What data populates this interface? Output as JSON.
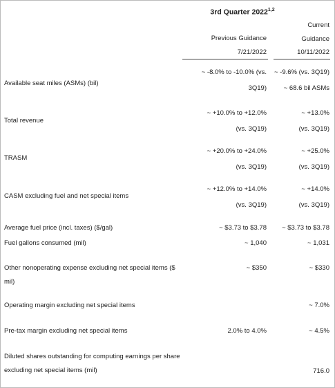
{
  "header": {
    "title": "3rd Quarter 2022",
    "title_superscript": "1,2",
    "previous": {
      "lines": [
        "Previous Guidance",
        "7/21/2022"
      ]
    },
    "current": {
      "lines": [
        "Current",
        "Guidance",
        "10/11/2022"
      ]
    }
  },
  "rows": [
    {
      "label": [
        "Available seat miles (ASMs) (bil)"
      ],
      "previous": [
        "~ -8.0% to -10.0% (vs.",
        "3Q19)"
      ],
      "current": [
        "~ -9.6% (vs. 3Q19)",
        "~ 68.6 bil ASMs"
      ]
    },
    {
      "label": [
        "Total revenue"
      ],
      "previous": [
        "~ +10.0% to +12.0%",
        "(vs. 3Q19)"
      ],
      "current": [
        "~ +13.0%",
        "(vs. 3Q19)"
      ]
    },
    {
      "label": [
        "TRASM"
      ],
      "previous": [
        "~ +20.0% to +24.0%",
        "(vs. 3Q19)"
      ],
      "current": [
        "~ +25.0%",
        "(vs. 3Q19)"
      ]
    },
    {
      "label": [
        "CASM excluding fuel and net special items"
      ],
      "previous": [
        "~ +12.0% to +14.0%",
        "(vs. 3Q19)"
      ],
      "current": [
        "~ +14.0%",
        "(vs. 3Q19)"
      ]
    },
    {
      "label": [
        "Average fuel price (incl. taxes) ($/gal)"
      ],
      "previous": [
        "~ $3.73 to $3.78"
      ],
      "current": [
        "~ $3.73 to $3.78"
      ]
    },
    {
      "label": [
        "Fuel gallons consumed (mil)"
      ],
      "previous": [
        "~ 1,040"
      ],
      "current": [
        "~ 1,031"
      ]
    },
    {
      "label": [
        "Other nonoperating expense excluding net special items ($",
        "mil)"
      ],
      "previous": [
        "~ $350"
      ],
      "current": [
        "~ $330"
      ]
    },
    {
      "label": [
        "Operating margin excluding net special items"
      ],
      "previous": [],
      "current": [
        "~ 7.0%"
      ]
    },
    {
      "label": [
        "Pre-tax margin excluding net special items"
      ],
      "previous": [
        "2.0% to 4.0%"
      ],
      "current": [
        "~ 4.5%"
      ]
    },
    {
      "label": [
        "Diluted shares outstanding for computing earnings per share",
        "excluding net special items (mil)"
      ],
      "previous": [],
      "current": [
        "716.0"
      ]
    }
  ]
}
